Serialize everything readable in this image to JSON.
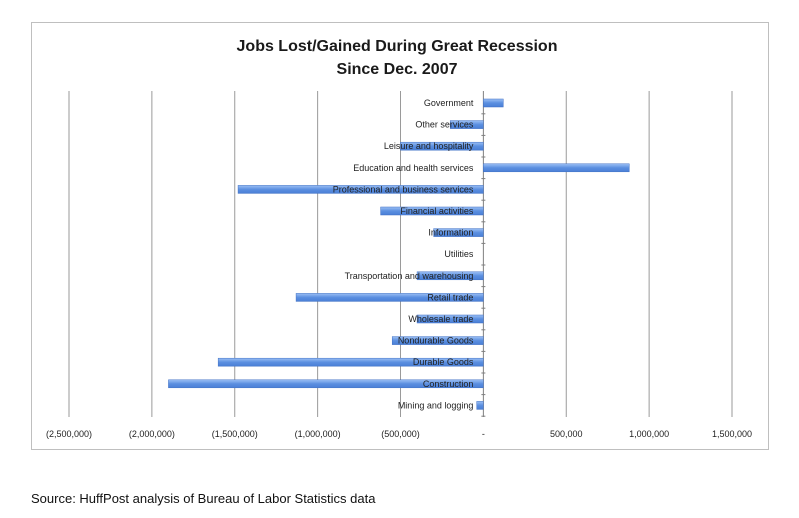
{
  "chart_data": {
    "type": "bar",
    "orientation": "horizontal",
    "title": "Jobs Lost/Gained During Great Recession",
    "subtitle": "Since Dec. 2007",
    "categories": [
      "Government",
      "Other services",
      "Leisure and hospitality",
      "Education and health services",
      "Professional and business services",
      "Financial activities",
      "Information",
      "Utilities",
      "Transportation and warehousing",
      "Retail trade",
      "Wholesale trade",
      "Nondurable Goods",
      "Durable Goods",
      "Construction",
      "Mining and logging"
    ],
    "values": [
      120000,
      -200000,
      -500000,
      880000,
      -1480000,
      -620000,
      -300000,
      0,
      -400000,
      -1130000,
      -400000,
      -550000,
      -1600000,
      -1900000,
      -40000
    ],
    "xlim": [
      -2500000,
      1500000
    ],
    "x_ticks": [
      -2500000,
      -2000000,
      -1500000,
      -1000000,
      -500000,
      0,
      500000,
      1000000,
      1500000
    ],
    "x_tick_labels": [
      "(2,500,000)",
      "(2,000,000)",
      "(1,500,000)",
      "(1,000,000)",
      "(500,000)",
      "-",
      "500,000",
      "1,000,000",
      "1,500,000"
    ],
    "grid": true,
    "bar_color": "#5b8fe0"
  },
  "source": "Source: HuffPost analysis of Bureau of Labor Statistics data"
}
